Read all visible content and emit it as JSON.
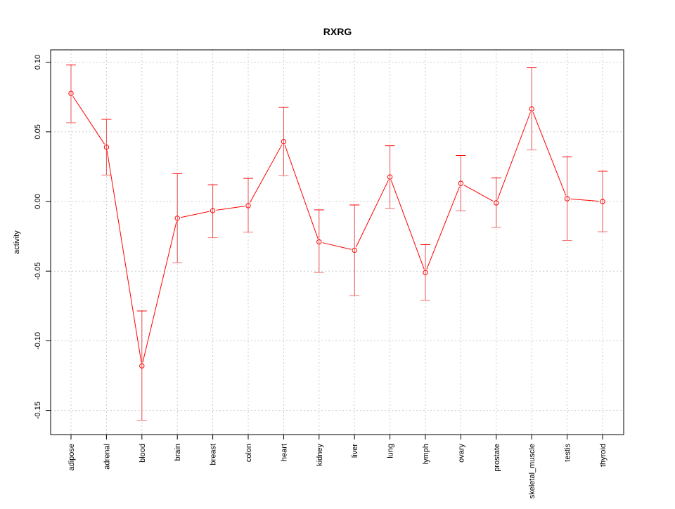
{
  "chart_data": {
    "type": "line",
    "title": "RXRG",
    "xlabel": "",
    "ylabel": "activity",
    "ylim": [
      -0.167,
      0.109
    ],
    "yticks": [
      0.1,
      0.05,
      0.0,
      -0.05,
      -0.1,
      -0.15
    ],
    "ytick_labels": [
      "0.10",
      "0.05",
      "0.00",
      "-0.05",
      "-0.10",
      "-0.15"
    ],
    "grid": true,
    "categories": [
      "adipose",
      "adrenal",
      "blood",
      "brain",
      "breast",
      "colon",
      "heart",
      "kidney",
      "liver",
      "lung",
      "lymph",
      "ovary",
      "prostate",
      "skeletal_muscle",
      "testis",
      "thyroid"
    ],
    "values": [
      0.0776,
      0.039,
      -0.118,
      -0.012,
      -0.0066,
      -0.003,
      0.043,
      -0.029,
      -0.035,
      0.0176,
      -0.051,
      0.013,
      -0.001,
      0.0665,
      0.002,
      0.0
    ],
    "upper": [
      0.098,
      0.059,
      -0.0786,
      0.02,
      0.012,
      0.0166,
      0.0675,
      -0.006,
      -0.0025,
      0.04,
      -0.031,
      0.033,
      0.017,
      0.096,
      0.032,
      0.0217
    ],
    "lower": [
      0.0565,
      0.019,
      -0.157,
      -0.044,
      -0.026,
      -0.022,
      0.0186,
      -0.051,
      -0.0675,
      -0.005,
      -0.071,
      -0.0066,
      -0.0186,
      0.037,
      -0.028,
      -0.0217
    ],
    "color": "#ff0000"
  }
}
